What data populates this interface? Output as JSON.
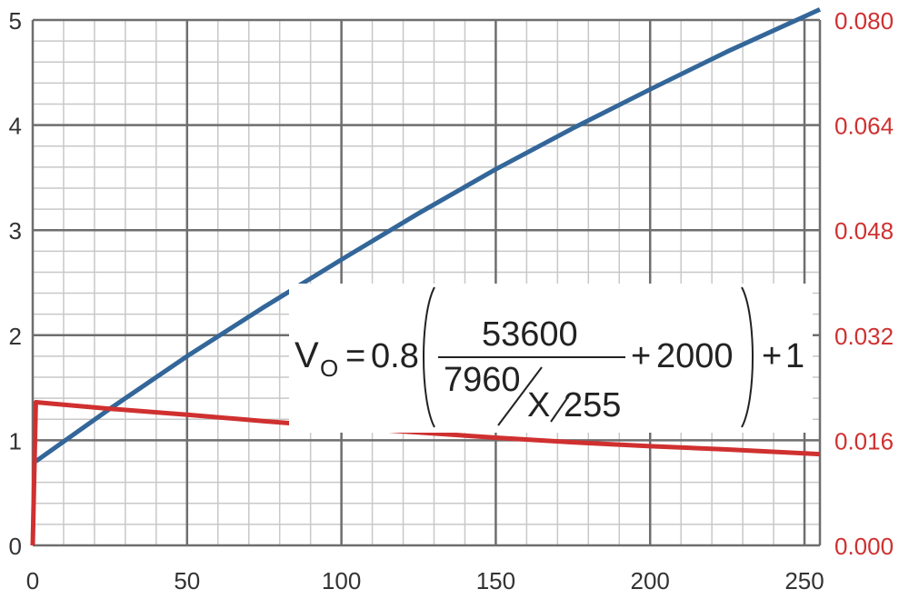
{
  "chart_data": {
    "type": "line",
    "title": "",
    "xlabel": "",
    "ylabel": "",
    "y2label": "",
    "xlim": [
      0,
      255
    ],
    "ylim": [
      0,
      5
    ],
    "y2lim": [
      0,
      0.08
    ],
    "x_ticks": [
      0,
      50,
      100,
      150,
      200,
      250
    ],
    "x_tick_labels": [
      "0",
      "50",
      "100",
      "150",
      "200",
      "250"
    ],
    "y_ticks": [
      0,
      1,
      2,
      3,
      4,
      5
    ],
    "y_tick_labels": [
      "0",
      "1",
      "2",
      "3",
      "4",
      "5"
    ],
    "y2_ticks": [
      0,
      0.016,
      0.032,
      0.048,
      0.064,
      0.08
    ],
    "y2_tick_labels": [
      "0.000",
      "0.016",
      "0.032",
      "0.048",
      "0.064",
      "0.080"
    ],
    "grid": true,
    "legend": "none",
    "series": [
      {
        "axis": "left",
        "color": "#336699",
        "x": [
          1,
          25,
          50,
          75,
          100,
          125,
          150,
          175,
          200,
          225,
          255
        ],
        "y": [
          0.8,
          1.3,
          1.8,
          2.27,
          2.72,
          3.16,
          3.58,
          3.97,
          4.34,
          4.7,
          5.1
        ]
      },
      {
        "axis": "right",
        "color": "#d03030",
        "x": [
          0,
          1,
          25,
          50,
          75,
          100,
          125,
          150,
          175,
          200,
          225,
          255
        ],
        "y": [
          0.0,
          0.0218,
          0.0208,
          0.0199,
          0.0189,
          0.018,
          0.0172,
          0.0164,
          0.0157,
          0.0151,
          0.0146,
          0.0139
        ]
      }
    ],
    "annotation": {
      "v": "V",
      "v_sub": "O",
      "eq": "=",
      "coef": "0.8",
      "numerator": "53600",
      "denom_num": "7960",
      "denom_den": "X",
      "denom_div": "255",
      "plus1": "+",
      "const1": "2000",
      "plus2": "+",
      "const2": "1"
    }
  },
  "colors": {
    "left_series": "#336699",
    "right_series": "#d03030",
    "right_axis_text": "#d03030",
    "major_grid": "#6e6e6e",
    "minor_grid": "#c8c8c8"
  }
}
